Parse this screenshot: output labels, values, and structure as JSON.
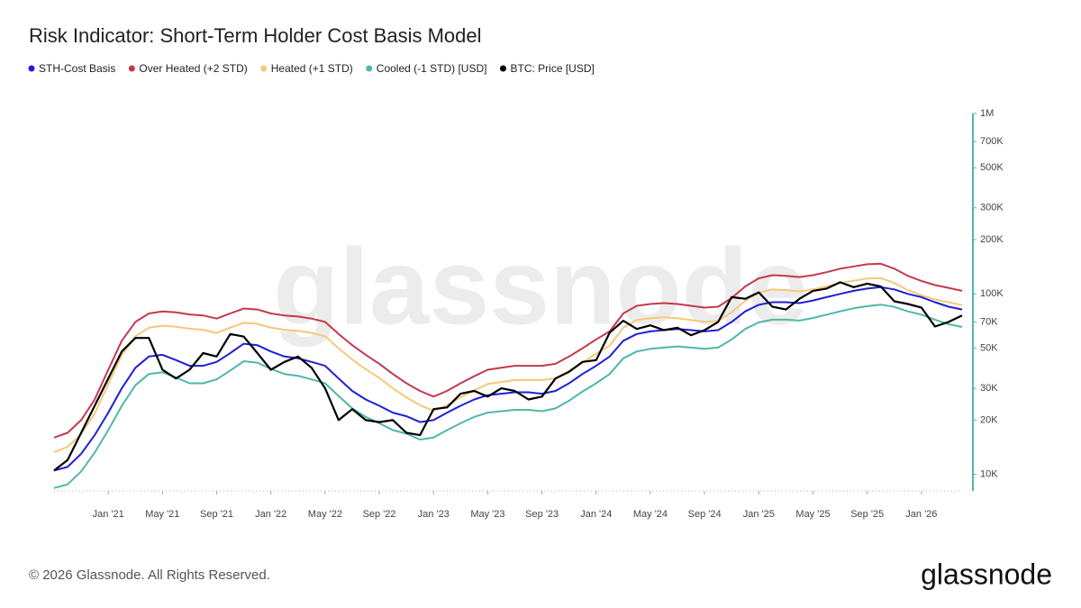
{
  "chart_data": {
    "type": "line",
    "title": "Risk Indicator: Short-Term Holder Cost Basis Model",
    "watermark": "glassnode",
    "logo": "glassnode",
    "copyright": "© 2026 Glassnode. All Rights Reserved.",
    "log_scale": true,
    "x": [
      "2020-09",
      "2020-10",
      "2020-11",
      "2020-12",
      "2021-01",
      "2021-02",
      "2021-03",
      "2021-04",
      "2021-05",
      "2021-06",
      "2021-07",
      "2021-08",
      "2021-09",
      "2021-10",
      "2021-11",
      "2021-12",
      "2022-01",
      "2022-02",
      "2022-03",
      "2022-04",
      "2022-05",
      "2022-06",
      "2022-07",
      "2022-08",
      "2022-09",
      "2022-10",
      "2022-11",
      "2022-12",
      "2023-01",
      "2023-02",
      "2023-03",
      "2023-04",
      "2023-05",
      "2023-06",
      "2023-07",
      "2023-08",
      "2023-09",
      "2023-10",
      "2023-11",
      "2023-12",
      "2024-01",
      "2024-02",
      "2024-03",
      "2024-04",
      "2024-05",
      "2024-06",
      "2024-07",
      "2024-08",
      "2024-09",
      "2024-10",
      "2024-11",
      "2024-12",
      "2025-01",
      "2025-02",
      "2025-03",
      "2025-04",
      "2025-05",
      "2025-06",
      "2025-07",
      "2025-08",
      "2025-09",
      "2025-10",
      "2025-11",
      "2025-12",
      "2026-01",
      "2026-02",
      "2026-03",
      "2026-04"
    ],
    "xlim": [
      "2020-09",
      "2026-04"
    ],
    "xticks": [
      {
        "value": "2021-01",
        "label": "Jan '21"
      },
      {
        "value": "2021-05",
        "label": "May '21"
      },
      {
        "value": "2021-09",
        "label": "Sep '21"
      },
      {
        "value": "2022-01",
        "label": "Jan '22"
      },
      {
        "value": "2022-05",
        "label": "May '22"
      },
      {
        "value": "2022-09",
        "label": "Sep '22"
      },
      {
        "value": "2023-01",
        "label": "Jan '23"
      },
      {
        "value": "2023-05",
        "label": "May '23"
      },
      {
        "value": "2023-09",
        "label": "Sep '23"
      },
      {
        "value": "2024-01",
        "label": "Jan '24"
      },
      {
        "value": "2024-05",
        "label": "May '24"
      },
      {
        "value": "2024-09",
        "label": "Sep '24"
      },
      {
        "value": "2025-01",
        "label": "Jan '25"
      },
      {
        "value": "2025-05",
        "label": "May '25"
      },
      {
        "value": "2025-09",
        "label": "Sep '25"
      },
      {
        "value": "2026-01",
        "label": "Jan '26"
      }
    ],
    "ylim": [
      8100,
      1000000
    ],
    "yticks": [
      {
        "value": 10000,
        "label": "10K"
      },
      {
        "value": 20000,
        "label": "20K"
      },
      {
        "value": 30000,
        "label": "30K"
      },
      {
        "value": 50000,
        "label": "50K"
      },
      {
        "value": 70000,
        "label": "70K"
      },
      {
        "value": 100000,
        "label": "100K"
      },
      {
        "value": 200000,
        "label": "200K"
      },
      {
        "value": 300000,
        "label": "300K"
      },
      {
        "value": 500000,
        "label": "500K"
      },
      {
        "value": 700000,
        "label": "700K"
      },
      {
        "value": 1000000,
        "label": "1M"
      }
    ],
    "axis_color": "#4db8a8",
    "series": [
      {
        "name": "STH-Cost Basis",
        "color": "#1f1fd6",
        "values": [
          10500,
          11000,
          13000,
          16500,
          22000,
          30000,
          39000,
          45000,
          46000,
          43000,
          40000,
          40000,
          42000,
          47000,
          53000,
          52000,
          48000,
          45000,
          44000,
          42000,
          40000,
          34000,
          29000,
          26000,
          24000,
          22000,
          21000,
          19500,
          20000,
          22000,
          24000,
          26000,
          27500,
          28000,
          28500,
          28500,
          28000,
          29000,
          32000,
          36000,
          40000,
          45000,
          55000,
          60000,
          62000,
          63000,
          64000,
          63000,
          62000,
          63000,
          70000,
          80000,
          87000,
          90000,
          90000,
          89000,
          92000,
          96000,
          100000,
          104000,
          107000,
          109000,
          106000,
          100000,
          96000,
          90000,
          85000,
          82000
        ]
      },
      {
        "name": "Over Heated (+2 STD)",
        "color": "#c23a4e",
        "values": [
          16000,
          17000,
          20000,
          26000,
          38000,
          55000,
          70000,
          78000,
          80000,
          79000,
          77000,
          76000,
          73000,
          78000,
          83000,
          82000,
          78000,
          76000,
          75000,
          73000,
          70000,
          60000,
          52000,
          46000,
          41000,
          36000,
          32000,
          29000,
          27000,
          29000,
          32000,
          35000,
          38000,
          39000,
          40000,
          40000,
          40000,
          41000,
          45000,
          50000,
          56000,
          62000,
          78000,
          86000,
          88000,
          89000,
          88000,
          86000,
          84000,
          85000,
          95000,
          110000,
          122000,
          127000,
          126000,
          124000,
          127000,
          132000,
          138000,
          142000,
          146000,
          147000,
          138000,
          126000,
          118000,
          112000,
          108000,
          104000
        ]
      },
      {
        "name": "Heated (+1 STD)",
        "color": "#f5c97a",
        "values": [
          13300,
          14200,
          16700,
          21700,
          31700,
          45800,
          58300,
          65000,
          66700,
          65800,
          64200,
          63300,
          60800,
          65000,
          69200,
          68300,
          65000,
          63300,
          62500,
          60800,
          58300,
          50000,
          43300,
          38300,
          34200,
          30000,
          26700,
          24200,
          22500,
          24200,
          26700,
          29200,
          31700,
          32500,
          33300,
          33300,
          33300,
          34200,
          37500,
          41700,
          46700,
          51700,
          65000,
          71700,
          73300,
          74200,
          73300,
          71700,
          70000,
          70800,
          79200,
          91700,
          101700,
          105800,
          105000,
          103300,
          105800,
          110000,
          115000,
          118300,
          121700,
          122500,
          115000,
          105000,
          98300,
          93300,
          90000,
          86700
        ]
      },
      {
        "name": "Cooled (-1 STD) [USD]",
        "color": "#4db8a8",
        "values": [
          8400,
          8800,
          10400,
          13200,
          17600,
          24000,
          31200,
          36000,
          36800,
          34400,
          32000,
          32000,
          33600,
          37600,
          42400,
          41600,
          38400,
          36000,
          35200,
          33600,
          32000,
          27200,
          23200,
          20800,
          19200,
          17600,
          16800,
          15600,
          16000,
          17600,
          19200,
          20800,
          22000,
          22400,
          22800,
          22800,
          22400,
          23200,
          25600,
          28800,
          32000,
          36000,
          44000,
          48000,
          49600,
          50400,
          51200,
          50400,
          49600,
          50400,
          56000,
          64000,
          69600,
          72000,
          72000,
          71200,
          73600,
          76800,
          80000,
          83200,
          85600,
          87200,
          84800,
          80000,
          76800,
          72000,
          68000,
          65600
        ]
      },
      {
        "name": "BTC: Price [USD]",
        "color": "#000000",
        "values": [
          10500,
          12000,
          17000,
          24000,
          34000,
          48000,
          57000,
          57000,
          38000,
          34000,
          38000,
          47000,
          45000,
          60000,
          58000,
          47000,
          38000,
          42000,
          45000,
          39000,
          30000,
          20000,
          23000,
          20000,
          19500,
          20000,
          17000,
          16500,
          23000,
          23500,
          28000,
          29000,
          27000,
          30000,
          29000,
          26000,
          27000,
          34000,
          37000,
          42000,
          43000,
          61000,
          71000,
          64000,
          67000,
          63000,
          65000,
          59000,
          63000,
          70000,
          96000,
          94000,
          102000,
          85000,
          82000,
          94000,
          104000,
          107000,
          116000,
          109000,
          114000,
          110000,
          91000,
          88000,
          84000,
          66000,
          70000,
          76000
        ]
      }
    ]
  }
}
